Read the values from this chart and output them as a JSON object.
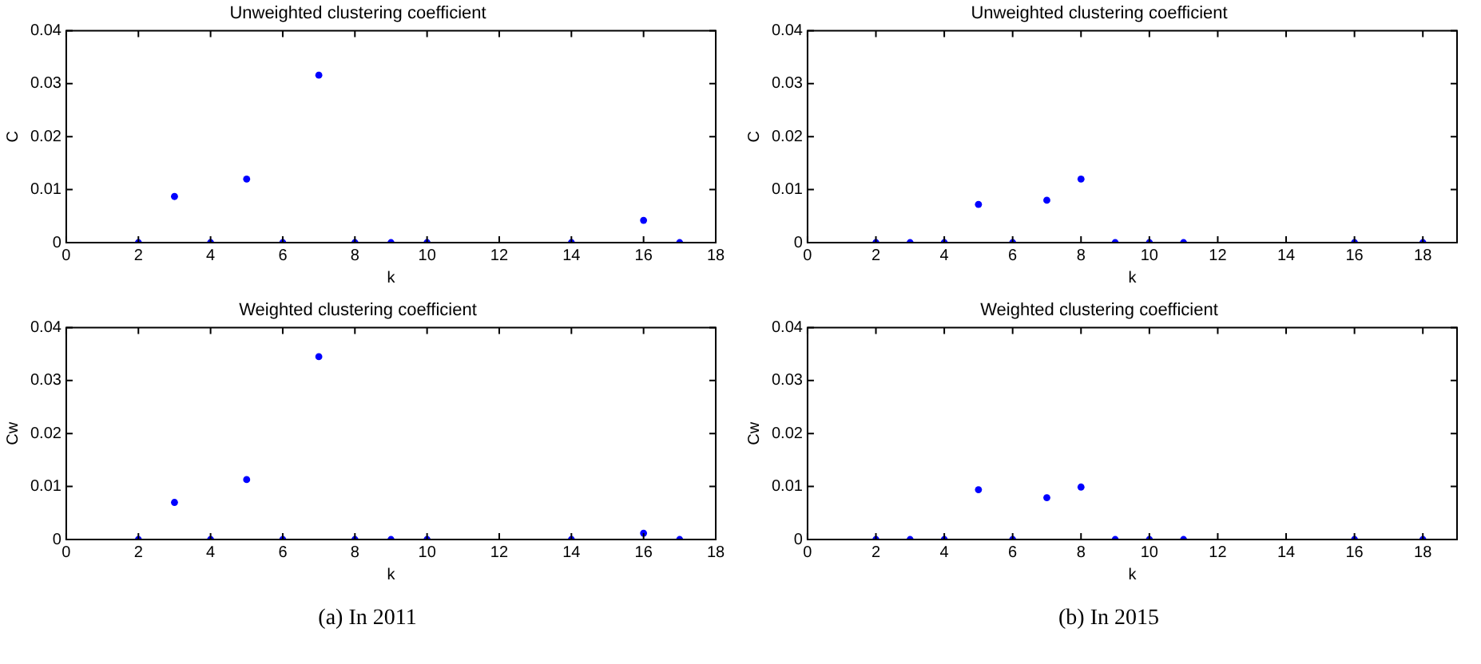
{
  "chart_data": [
    {
      "type": "scatter",
      "title": "Unweighted clustering coefficient",
      "xlabel": "k",
      "ylabel": "C",
      "x": [
        2,
        3,
        4,
        5,
        6,
        7,
        8,
        9,
        10,
        14,
        16,
        17
      ],
      "values": [
        0,
        0.0087,
        0,
        0.012,
        0,
        0.0316,
        0,
        0,
        0,
        0,
        0.0042,
        0
      ],
      "color": "#0000ff",
      "marker": "circle",
      "xlim": [
        0,
        18
      ],
      "xticks": [
        0,
        2,
        4,
        6,
        8,
        10,
        12,
        14,
        16,
        18
      ],
      "ylim": [
        0,
        0.04
      ],
      "yticks": [
        0,
        0.01,
        0.02,
        0.03,
        0.04
      ]
    },
    {
      "type": "scatter",
      "title": "Unweighted clustering coefficient",
      "xlabel": "k",
      "ylabel": "C",
      "x": [
        2,
        3,
        4,
        5,
        6,
        7,
        8,
        9,
        10,
        11,
        16,
        18
      ],
      "values": [
        0,
        0,
        0,
        0.0072,
        0,
        0.008,
        0.012,
        0,
        0,
        0,
        0,
        0
      ],
      "color": "#0000ff",
      "marker": "circle",
      "xlim": [
        0,
        19
      ],
      "xticks": [
        0,
        2,
        4,
        6,
        8,
        10,
        12,
        14,
        16,
        18
      ],
      "ylim": [
        0,
        0.04
      ],
      "yticks": [
        0,
        0.01,
        0.02,
        0.03,
        0.04
      ]
    },
    {
      "type": "scatter",
      "title": "Weighted clustering coefficient",
      "xlabel": "k",
      "ylabel": "Cw",
      "x": [
        2,
        3,
        4,
        5,
        6,
        7,
        8,
        9,
        10,
        14,
        16,
        17
      ],
      "values": [
        0,
        0.007,
        0,
        0.0113,
        0,
        0.0345,
        0,
        0,
        0,
        0,
        0.0012,
        0
      ],
      "color": "#0000ff",
      "marker": "circle",
      "xlim": [
        0,
        18
      ],
      "xticks": [
        0,
        2,
        4,
        6,
        8,
        10,
        12,
        14,
        16,
        18
      ],
      "ylim": [
        0,
        0.04
      ],
      "yticks": [
        0,
        0.01,
        0.02,
        0.03,
        0.04
      ],
      "annotations": [
        "(a) In 2011"
      ]
    },
    {
      "type": "scatter",
      "title": "Weighted clustering coefficient",
      "xlabel": "k",
      "ylabel": "Cw",
      "x": [
        2,
        3,
        4,
        5,
        6,
        7,
        8,
        9,
        10,
        11,
        16,
        18
      ],
      "values": [
        0,
        0,
        0,
        0.0094,
        0,
        0.0079,
        0.0099,
        0,
        0,
        0,
        0,
        0
      ],
      "color": "#0000ff",
      "marker": "circle",
      "xlim": [
        0,
        19
      ],
      "xticks": [
        0,
        2,
        4,
        6,
        8,
        10,
        12,
        14,
        16,
        18
      ],
      "ylim": [
        0,
        0.04
      ],
      "yticks": [
        0,
        0.01,
        0.02,
        0.03,
        0.04
      ],
      "annotations": [
        "(b) In 2015"
      ]
    }
  ]
}
